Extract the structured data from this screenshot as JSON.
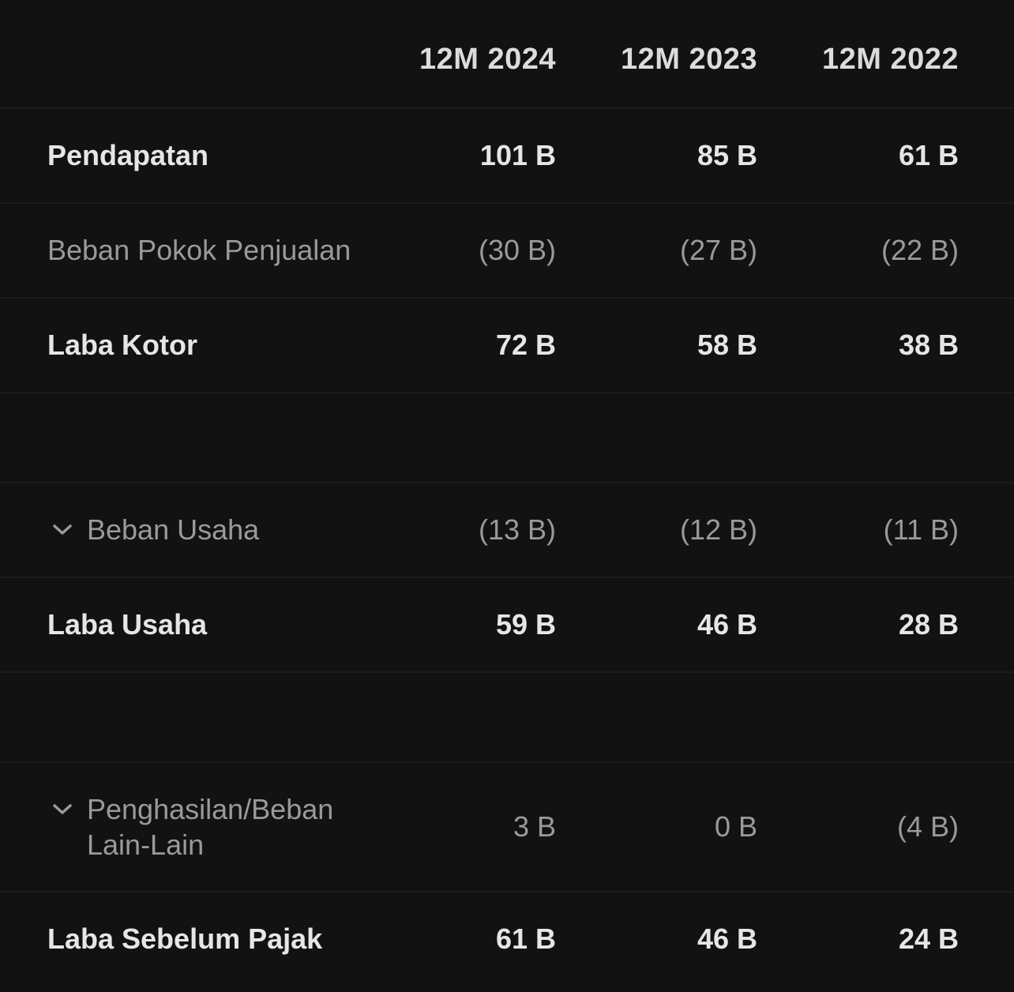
{
  "header": {
    "columns": [
      "12M 2024",
      "12M 2023",
      "12M 2022"
    ]
  },
  "rows": [
    {
      "label": "Pendapatan",
      "values": [
        "101 B",
        "85 B",
        "61 B"
      ]
    },
    {
      "label": "Beban Pokok Penjualan",
      "values": [
        "(30 B)",
        "(27 B)",
        "(22 B)"
      ]
    },
    {
      "label": "Laba Kotor",
      "values": [
        "72 B",
        "58 B",
        "38 B"
      ]
    },
    {
      "label": "Beban Usaha",
      "values": [
        "(13 B)",
        "(12 B)",
        "(11 B)"
      ]
    },
    {
      "label": "Laba Usaha",
      "values": [
        "59 B",
        "46 B",
        "28 B"
      ]
    },
    {
      "label": "Penghasilan/Beban Lain-Lain",
      "values": [
        "3 B",
        "0 B",
        "(4 B)"
      ]
    },
    {
      "label": "Laba Sebelum Pajak",
      "values": [
        "61 B",
        "46 B",
        "24 B"
      ]
    }
  ],
  "icons": {
    "expand": "chevron-down-icon"
  },
  "colors": {
    "background": "#121212",
    "divider": "#1c1c1c",
    "primary_text": "#e6e6e6",
    "muted_text": "#9a9a9a"
  }
}
